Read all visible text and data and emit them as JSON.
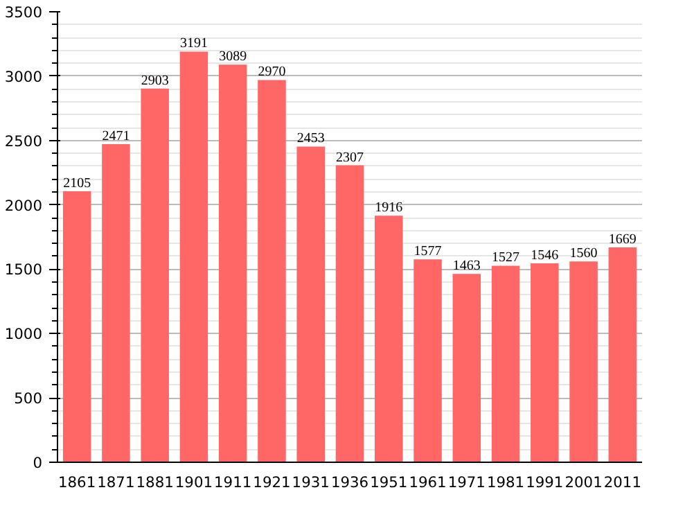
{
  "chart_data": {
    "type": "bar",
    "categories": [
      "1861",
      "1871",
      "1881",
      "1901",
      "1911",
      "1921",
      "1931",
      "1936",
      "1951",
      "1961",
      "1971",
      "1981",
      "1991",
      "2001",
      "2011"
    ],
    "values": [
      2105,
      2471,
      2903,
      3191,
      3089,
      2970,
      2453,
      2307,
      1916,
      1577,
      1463,
      1527,
      1546,
      1560,
      1669
    ],
    "color": "#ff6666",
    "ylim": [
      0,
      3500
    ],
    "yticks": [
      0,
      500,
      1000,
      1500,
      2000,
      2500,
      3000,
      3500
    ],
    "grid": "y",
    "data_labels": true
  }
}
